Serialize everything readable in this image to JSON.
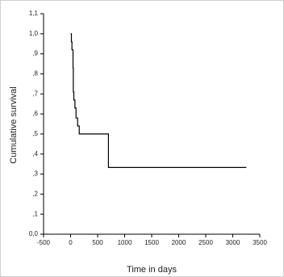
{
  "chart_data": {
    "type": "line",
    "x_label": "Time in days",
    "y_label": "Cumulative survival",
    "x": [
      0,
      15,
      15,
      25,
      25,
      45,
      45,
      50,
      50,
      60,
      60,
      80,
      80,
      100,
      100,
      130,
      130,
      160,
      160,
      700,
      700,
      3250
    ],
    "series": [
      {
        "color": "#000000",
        "values": [
          1,
          1,
          0.96,
          0.96,
          0.92,
          0.92,
          0.83,
          0.83,
          0.71,
          0.71,
          0.67,
          0.67,
          0.63,
          0.63,
          0.58,
          0.58,
          0.54,
          0.54,
          0.5,
          0.5,
          0.333,
          0.333
        ]
      }
    ],
    "xlim": [
      -500,
      3500
    ],
    "xticks": [
      -500,
      0,
      500,
      1000,
      1500,
      2000,
      2500,
      3000,
      3500
    ],
    "ylim": [
      0,
      1.1
    ],
    "yticks": [
      {
        "value": 0,
        "label": "0,0"
      },
      {
        "value": 0.1,
        "label": ",1"
      },
      {
        "value": 0.2,
        "label": ",2"
      },
      {
        "value": 0.3,
        "label": ",3"
      },
      {
        "value": 0.4,
        "label": ",4"
      },
      {
        "value": 0.5,
        "label": ",5"
      },
      {
        "value": 0.6,
        "label": ",6"
      },
      {
        "value": 0.7,
        "label": ",7"
      },
      {
        "value": 0.8,
        "label": ",8"
      },
      {
        "value": 0.9,
        "label": ",9"
      },
      {
        "value": 1.0,
        "label": "1,0"
      },
      {
        "value": 1.1,
        "label": "1,1"
      }
    ]
  }
}
